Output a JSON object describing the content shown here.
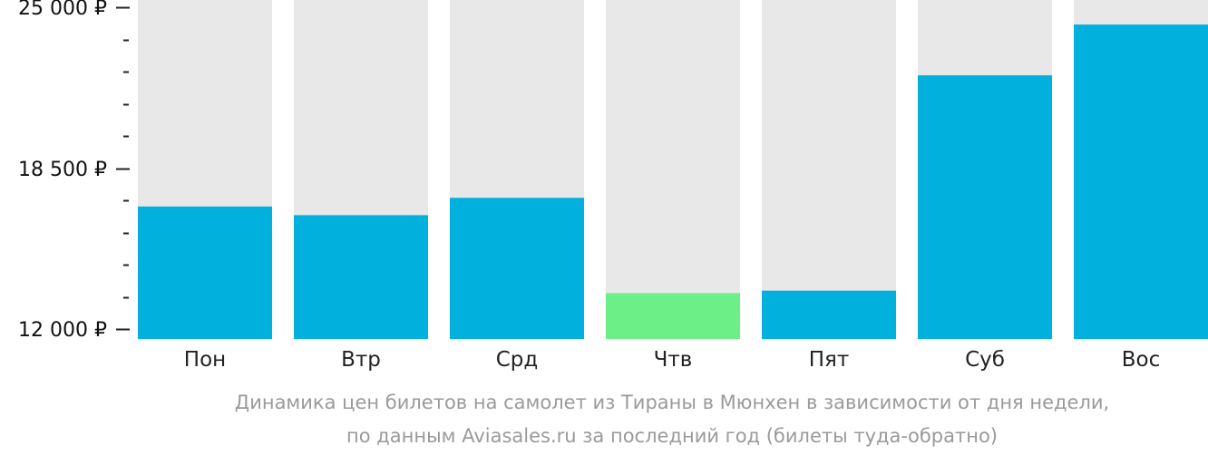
{
  "chart_data": {
    "type": "bar",
    "categories": [
      "Пон",
      "Втр",
      "Срд",
      "Чтв",
      "Пят",
      "Суб",
      "Вос"
    ],
    "values": [
      16950,
      16600,
      17300,
      13450,
      13550,
      22250,
      24300
    ],
    "ylim": [
      12000,
      25000
    ],
    "yticks": [
      {
        "value": 25000,
        "label": "25 000 ₽"
      },
      {
        "value": 18500,
        "label": "18 500 ₽"
      },
      {
        "value": 12000,
        "label": "12 000 ₽"
      }
    ],
    "minor_tick_step": 1300,
    "highlight_index": 3,
    "colors": {
      "bar": "#01b0dc",
      "highlight": "#6cef86",
      "background_column": "#e8e8e8",
      "axis_text": "#111111",
      "caption": "#9a9a9a"
    },
    "caption_lines": [
      "Динамика цен билетов на самолет из Тираны в Мюнхен в зависимости от дня недели,",
      "по данным Aviasales.ru за последний год (билеты туда-обратно)"
    ]
  }
}
